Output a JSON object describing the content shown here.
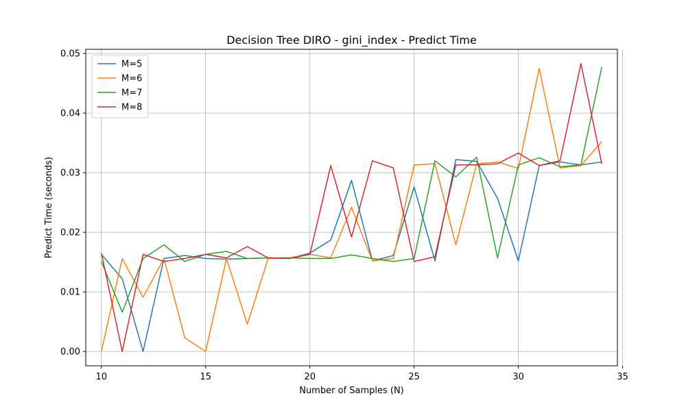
{
  "chart_data": {
    "type": "line",
    "title": "Decision Tree DIRO - gini_index - Predict Time",
    "xlabel": "Number of Samples (N)",
    "ylabel": "Predict Time (seconds)",
    "xlim": [
      9.25,
      34.75
    ],
    "ylim": [
      -0.0024,
      0.0507
    ],
    "x_ticks": [
      10,
      15,
      20,
      25,
      30,
      35
    ],
    "y_ticks": [
      0.0,
      0.01,
      0.02,
      0.03,
      0.04,
      0.05
    ],
    "grid": true,
    "legend_position": "top-left",
    "x": [
      10,
      11,
      12,
      13,
      14,
      15,
      16,
      17,
      18,
      19,
      20,
      21,
      22,
      23,
      24,
      25,
      26,
      27,
      28,
      29,
      30,
      31,
      32,
      33,
      34
    ],
    "series": [
      {
        "name": "M=5",
        "color": "#1f77b4",
        "values": [
          0.0163,
          0.0122,
          0.0,
          0.0156,
          0.0161,
          0.0156,
          0.0155,
          0.0156,
          0.0157,
          0.0156,
          0.0165,
          0.0187,
          0.0287,
          0.0152,
          0.0161,
          0.0276,
          0.0152,
          0.0322,
          0.0319,
          0.0257,
          0.0152,
          0.0312,
          0.0318,
          0.0313,
          0.0318
        ]
      },
      {
        "name": "M=6",
        "color": "#ff7f0e",
        "values": [
          0.0,
          0.0156,
          0.0091,
          0.0156,
          0.0023,
          0.0,
          0.0156,
          0.0046,
          0.0156,
          0.0157,
          0.0163,
          0.0157,
          0.0242,
          0.0152,
          0.0156,
          0.0313,
          0.0315,
          0.0179,
          0.0315,
          0.0318,
          0.0307,
          0.0475,
          0.0308,
          0.0312,
          0.0352
        ]
      },
      {
        "name": "M=7",
        "color": "#2ca02c",
        "values": [
          0.0151,
          0.0066,
          0.0156,
          0.0179,
          0.0151,
          0.0163,
          0.0168,
          0.0156,
          0.0157,
          0.0157,
          0.0156,
          0.0156,
          0.0162,
          0.0156,
          0.0151,
          0.0156,
          0.032,
          0.0293,
          0.0326,
          0.0157,
          0.0313,
          0.0325,
          0.031,
          0.0313,
          0.0477
        ]
      },
      {
        "name": "M=8",
        "color": "#d62728",
        "values": [
          0.0165,
          0.0,
          0.0163,
          0.0151,
          0.0156,
          0.0163,
          0.0157,
          0.0176,
          0.0157,
          0.0156,
          0.0163,
          0.0312,
          0.0192,
          0.032,
          0.0308,
          0.0151,
          0.0159,
          0.0313,
          0.0313,
          0.0315,
          0.0333,
          0.0312,
          0.032,
          0.0483,
          0.0315
        ]
      }
    ]
  }
}
